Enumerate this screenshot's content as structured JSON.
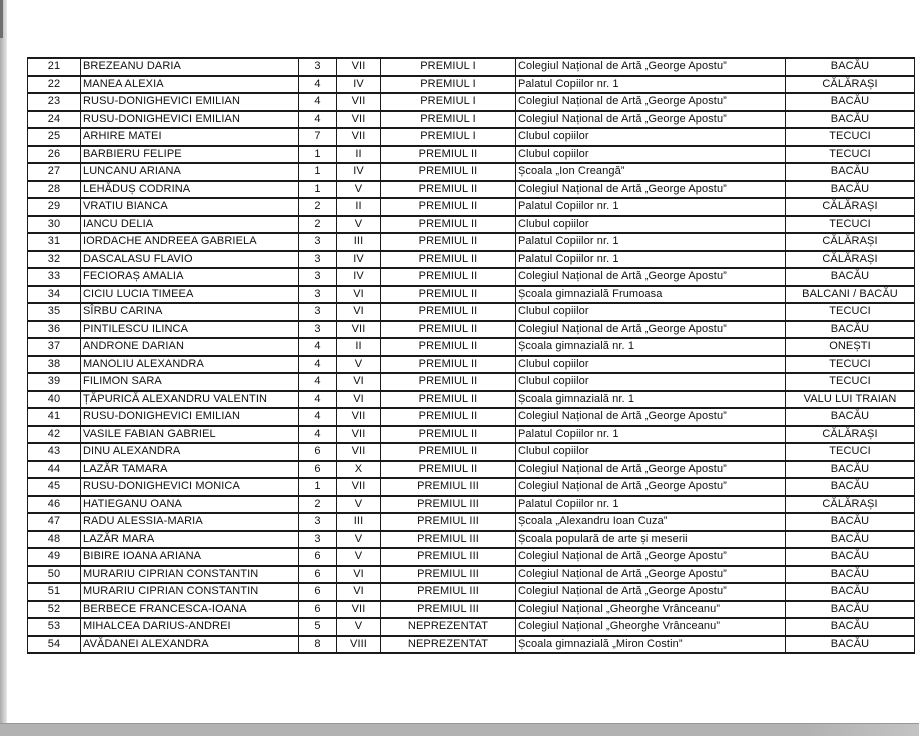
{
  "document": {
    "kind": "scanned competition results table (rows 21–54)",
    "language": "Romanian"
  },
  "colors": {
    "page_background": "#ffffff",
    "table_border": "#1a1a1a",
    "text": "#101010",
    "scan_edge_gray": "#b2b2b2"
  },
  "table": {
    "column_keys": [
      "row-number",
      "participant-name",
      "year",
      "class",
      "award",
      "school",
      "city"
    ],
    "rows": [
      [
        "21",
        "BREZEANU DARIA",
        "3",
        "VII",
        "PREMIUL I",
        "Colegiul Național de Artă „George Apostu”",
        "BACĂU"
      ],
      [
        "22",
        "MANEA ALEXIA",
        "4",
        "IV",
        "PREMIUL I",
        "Palatul Copiilor nr. 1",
        "CĂLĂRAȘI"
      ],
      [
        "23",
        "RUSU-DONIGHEVICI EMILIAN",
        "4",
        "VII",
        "PREMIUL I",
        "Colegiul Național de Artă „George Apostu”",
        "BACĂU"
      ],
      [
        "24",
        "RUSU-DONIGHEVICI EMILIAN",
        "4",
        "VII",
        "PREMIUL I",
        "Colegiul Național de Artă „George Apostu”",
        "BACĂU"
      ],
      [
        "25",
        "ARHIRE MATEI",
        "7",
        "VII",
        "PREMIUL I",
        "Clubul copiilor",
        "TECUCI"
      ],
      [
        "26",
        "BARBIERU FELIPE",
        "1",
        "II",
        "PREMIUL II",
        "Clubul copiilor",
        "TECUCI"
      ],
      [
        "27",
        "LUNCANU ARIANA",
        "1",
        "IV",
        "PREMIUL II",
        "Școala „Ion Creangă”",
        "BACĂU"
      ],
      [
        "28",
        "LEHĂDUȘ CODRINA",
        "1",
        "V",
        "PREMIUL II",
        "Colegiul Național de Artă „George Apostu”",
        "BACĂU"
      ],
      [
        "29",
        "VRATIU BIANCA",
        "2",
        "II",
        "PREMIUL II",
        "Palatul Copiilor nr. 1",
        "CĂLĂRAȘI"
      ],
      [
        "30",
        "IANCU DELIA",
        "2",
        "V",
        "PREMIUL II",
        "Clubul copiilor",
        "TECUCI"
      ],
      [
        "31",
        "IORDACHE ANDREEA GABRIELA",
        "3",
        "III",
        "PREMIUL II",
        "Palatul Copiilor nr. 1",
        "CĂLĂRAȘI"
      ],
      [
        "32",
        "DASCALASU FLAVIO",
        "3",
        "IV",
        "PREMIUL II",
        "Palatul Copiilor nr. 1",
        "CĂLĂRAȘI"
      ],
      [
        "33",
        "FECIORAȘ AMALIA",
        "3",
        "IV",
        "PREMIUL II",
        "Colegiul Național de Artă „George Apostu”",
        "BACĂU"
      ],
      [
        "34",
        "CICIU LUCIA TIMEEA",
        "3",
        "VI",
        "PREMIUL II",
        "Școala gimnazială Frumoasa",
        "BALCANI / BACĂU"
      ],
      [
        "35",
        "SÎRBU CARINA",
        "3",
        "VI",
        "PREMIUL II",
        "Clubul copiilor",
        "TECUCI"
      ],
      [
        "36",
        "PINTILESCU ILINCA",
        "3",
        "VII",
        "PREMIUL II",
        "Colegiul Național de Artă „George Apostu”",
        "BACĂU"
      ],
      [
        "37",
        "ANDRONE DARIAN",
        "4",
        "II",
        "PREMIUL II",
        "Școala gimnazială nr. 1",
        "ONEȘTI"
      ],
      [
        "38",
        "MANOLIU ALEXANDRA",
        "4",
        "V",
        "PREMIUL II",
        "Clubul copiilor",
        "TECUCI"
      ],
      [
        "39",
        "FILIMON SARA",
        "4",
        "VI",
        "PREMIUL II",
        "Clubul copiilor",
        "TECUCI"
      ],
      [
        "40",
        "ȚĂPURICĂ ALEXANDRU VALENTIN",
        "4",
        "VI",
        "PREMIUL II",
        "Școala gimnazială nr. 1",
        "VALU LUI TRAIAN"
      ],
      [
        "41",
        "RUSU-DONIGHEVICI EMILIAN",
        "4",
        "VII",
        "PREMIUL II",
        "Colegiul Național de Artă „George Apostu”",
        "BACĂU"
      ],
      [
        "42",
        "VASILE FABIAN GABRIEL",
        "4",
        "VII",
        "PREMIUL II",
        "Palatul Copiilor nr. 1",
        "CĂLĂRAȘI"
      ],
      [
        "43",
        "DINU ALEXANDRA",
        "6",
        "VII",
        "PREMIUL II",
        "Clubul copiilor",
        "TECUCI"
      ],
      [
        "44",
        "LAZĂR TAMARA",
        "6",
        "X",
        "PREMIUL II",
        "Colegiul Național de Artă „George Apostu”",
        "BACĂU"
      ],
      [
        "45",
        "RUSU-DONIGHEVICI MONICA",
        "1",
        "VII",
        "PREMIUL III",
        "Colegiul Național de Artă „George Apostu”",
        "BACĂU"
      ],
      [
        "46",
        "HATIEGANU OANA",
        "2",
        "V",
        "PREMIUL III",
        "Palatul Copiilor nr. 1",
        "CĂLĂRAȘI"
      ],
      [
        "47",
        "RADU ALESSIA-MARIA",
        "3",
        "III",
        "PREMIUL III",
        "Școala „Alexandru Ioan Cuza”",
        "BACĂU"
      ],
      [
        "48",
        "LAZĂR MARA",
        "3",
        "V",
        "PREMIUL III",
        "Școala populară de arte și meserii",
        "BACĂU"
      ],
      [
        "49",
        "BIBIRE IOANA ARIANA",
        "6",
        "V",
        "PREMIUL III",
        "Colegiul Național de Artă „George Apostu”",
        "BACĂU"
      ],
      [
        "50",
        "MURARIU CIPRIAN CONSTANTIN",
        "6",
        "VI",
        "PREMIUL III",
        "Colegiul Național de Artă „George Apostu”",
        "BACĂU"
      ],
      [
        "51",
        "MURARIU CIPRIAN CONSTANTIN",
        "6",
        "VI",
        "PREMIUL III",
        "Colegiul Național de Artă „George Apostu”",
        "BACĂU"
      ],
      [
        "52",
        "BERBECE FRANCESCA-IOANA",
        "6",
        "VII",
        "PREMIUL III",
        "Colegiul Național „Gheorghe Vrânceanu”",
        "BACĂU"
      ],
      [
        "53",
        "MIHALCEA DARIUS-ANDREI",
        "5",
        "V",
        "NEPREZENTAT",
        "Colegiul Național „Gheorghe Vrânceanu”",
        "BACĂU"
      ],
      [
        "54",
        "AVĂDANEI ALEXANDRA",
        "8",
        "VIII",
        "NEPREZENTAT",
        "Școala gimnazială „Miron Costin”",
        "BACĂU"
      ]
    ]
  }
}
